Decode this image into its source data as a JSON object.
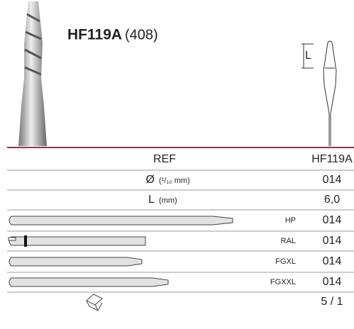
{
  "header": {
    "title": "HF119A",
    "code": "(408)"
  },
  "dimension_label": "L",
  "table": {
    "header": {
      "label": "REF",
      "value": "HF119A"
    },
    "rows": [
      {
        "label": "Ø",
        "unit": "(¹/₁₀ mm)",
        "value": "014"
      },
      {
        "label": "L",
        "unit": "(mm)",
        "value": "6,0"
      },
      {
        "shank": "HP",
        "value": "014"
      },
      {
        "shank": "RAL",
        "value": "014"
      },
      {
        "shank": "FGXL",
        "value": "014"
      },
      {
        "shank": "FGXXL",
        "value": "014"
      },
      {
        "value": "5 / 1"
      }
    ]
  }
}
